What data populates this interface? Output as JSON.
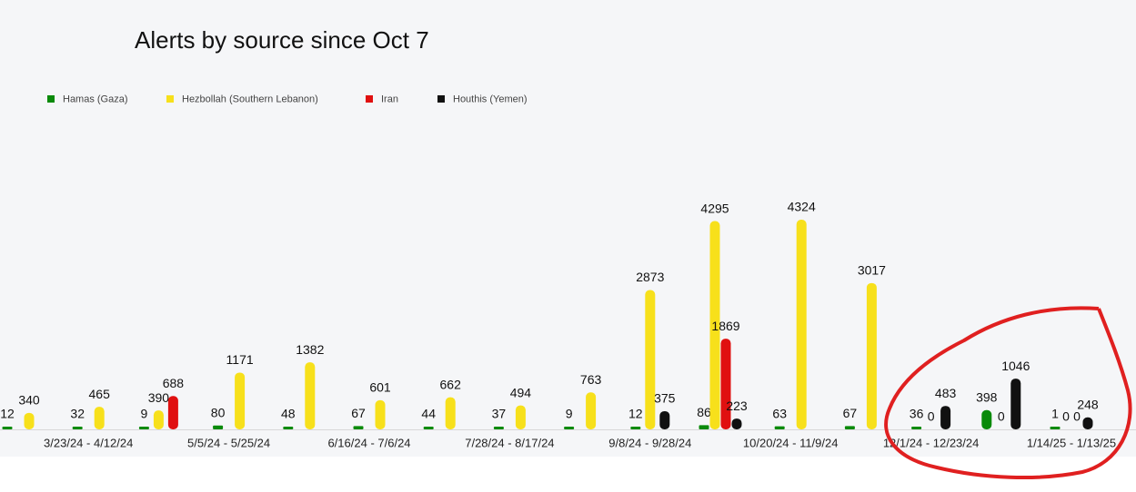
{
  "chart_data": {
    "type": "bar",
    "title": "Alerts by source since Oct 7",
    "categories": [
      null,
      "3/23/24 - 4/12/24",
      null,
      "5/5/24 - 5/25/24",
      null,
      "6/16/24 - 7/6/24",
      null,
      "7/28/24 - 8/17/24",
      null,
      "9/8/24 - 9/28/24",
      null,
      "10/20/24 - 11/9/24",
      null,
      "12/1/24 - 12/23/24",
      null,
      "1/14/25 - 1/13/25"
    ],
    "series": [
      {
        "name": "Hamas (Gaza)",
        "color": "#0a8a0a",
        "values": [
          12,
          32,
          9,
          80,
          48,
          67,
          44,
          37,
          9,
          12,
          86,
          63,
          67,
          36,
          398,
          1
        ]
      },
      {
        "name": "Hezbollah (Southern Lebanon)",
        "color": "#f7e01b",
        "values": [
          340,
          465,
          390,
          1171,
          1382,
          601,
          662,
          494,
          763,
          2873,
          4295,
          4324,
          3017,
          0,
          0,
          0
        ]
      },
      {
        "name": "Iran",
        "color": "#e01010",
        "values": [
          null,
          null,
          688,
          null,
          null,
          null,
          null,
          null,
          null,
          null,
          1869,
          null,
          null,
          null,
          null,
          0
        ]
      },
      {
        "name": "Houthis (Yemen)",
        "color": "#111111",
        "values": [
          null,
          null,
          null,
          null,
          null,
          null,
          null,
          null,
          null,
          375,
          223,
          null,
          null,
          483,
          1046,
          248
        ]
      }
    ],
    "legend": "top-left"
  }
}
